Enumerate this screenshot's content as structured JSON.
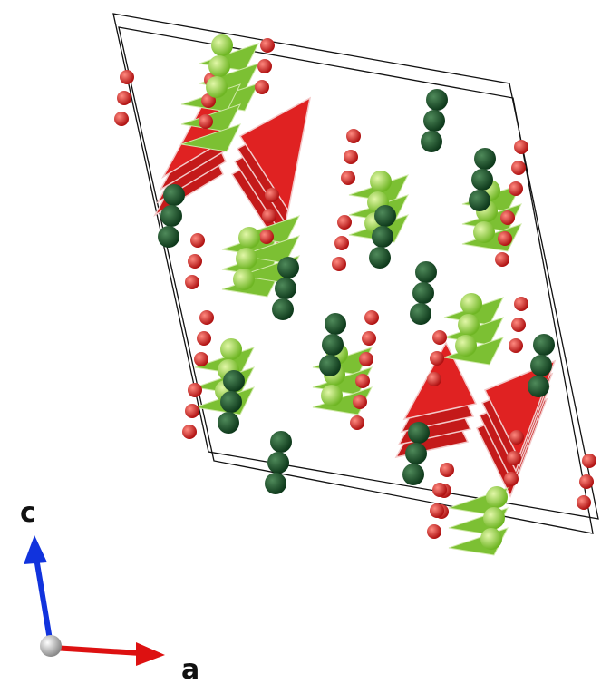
{
  "axes": [
    {
      "label": "c"
    },
    {
      "label": "a"
    }
  ]
}
